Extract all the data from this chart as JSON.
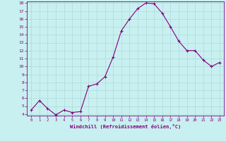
{
  "x": [
    0,
    1,
    2,
    3,
    4,
    5,
    6,
    7,
    8,
    9,
    10,
    11,
    12,
    13,
    14,
    15,
    16,
    17,
    18,
    19,
    20,
    21,
    22,
    23
  ],
  "y": [
    4.5,
    5.7,
    4.7,
    3.9,
    4.5,
    4.2,
    4.3,
    7.5,
    7.8,
    8.7,
    11.2,
    14.5,
    16.0,
    17.3,
    18.0,
    17.9,
    16.7,
    15.0,
    13.2,
    12.0,
    12.0,
    10.8,
    10.0,
    10.5
  ],
  "line_color": "#800080",
  "marker": "+",
  "marker_color": "#800080",
  "bg_color": "#c8f0f0",
  "grid_color": "#b0d8d8",
  "xlabel": "Windchill (Refroidissement éolien,°C)",
  "xlabel_color": "#800080",
  "tick_color": "#800080",
  "ylim": [
    4,
    18
  ],
  "yticks": [
    4,
    5,
    6,
    7,
    8,
    9,
    10,
    11,
    12,
    13,
    14,
    15,
    16,
    17,
    18
  ],
  "xlim": [
    -0.5,
    23.5
  ],
  "xticks": [
    0,
    1,
    2,
    3,
    4,
    5,
    6,
    7,
    8,
    9,
    10,
    11,
    12,
    13,
    14,
    15,
    16,
    17,
    18,
    19,
    20,
    21,
    22,
    23
  ]
}
